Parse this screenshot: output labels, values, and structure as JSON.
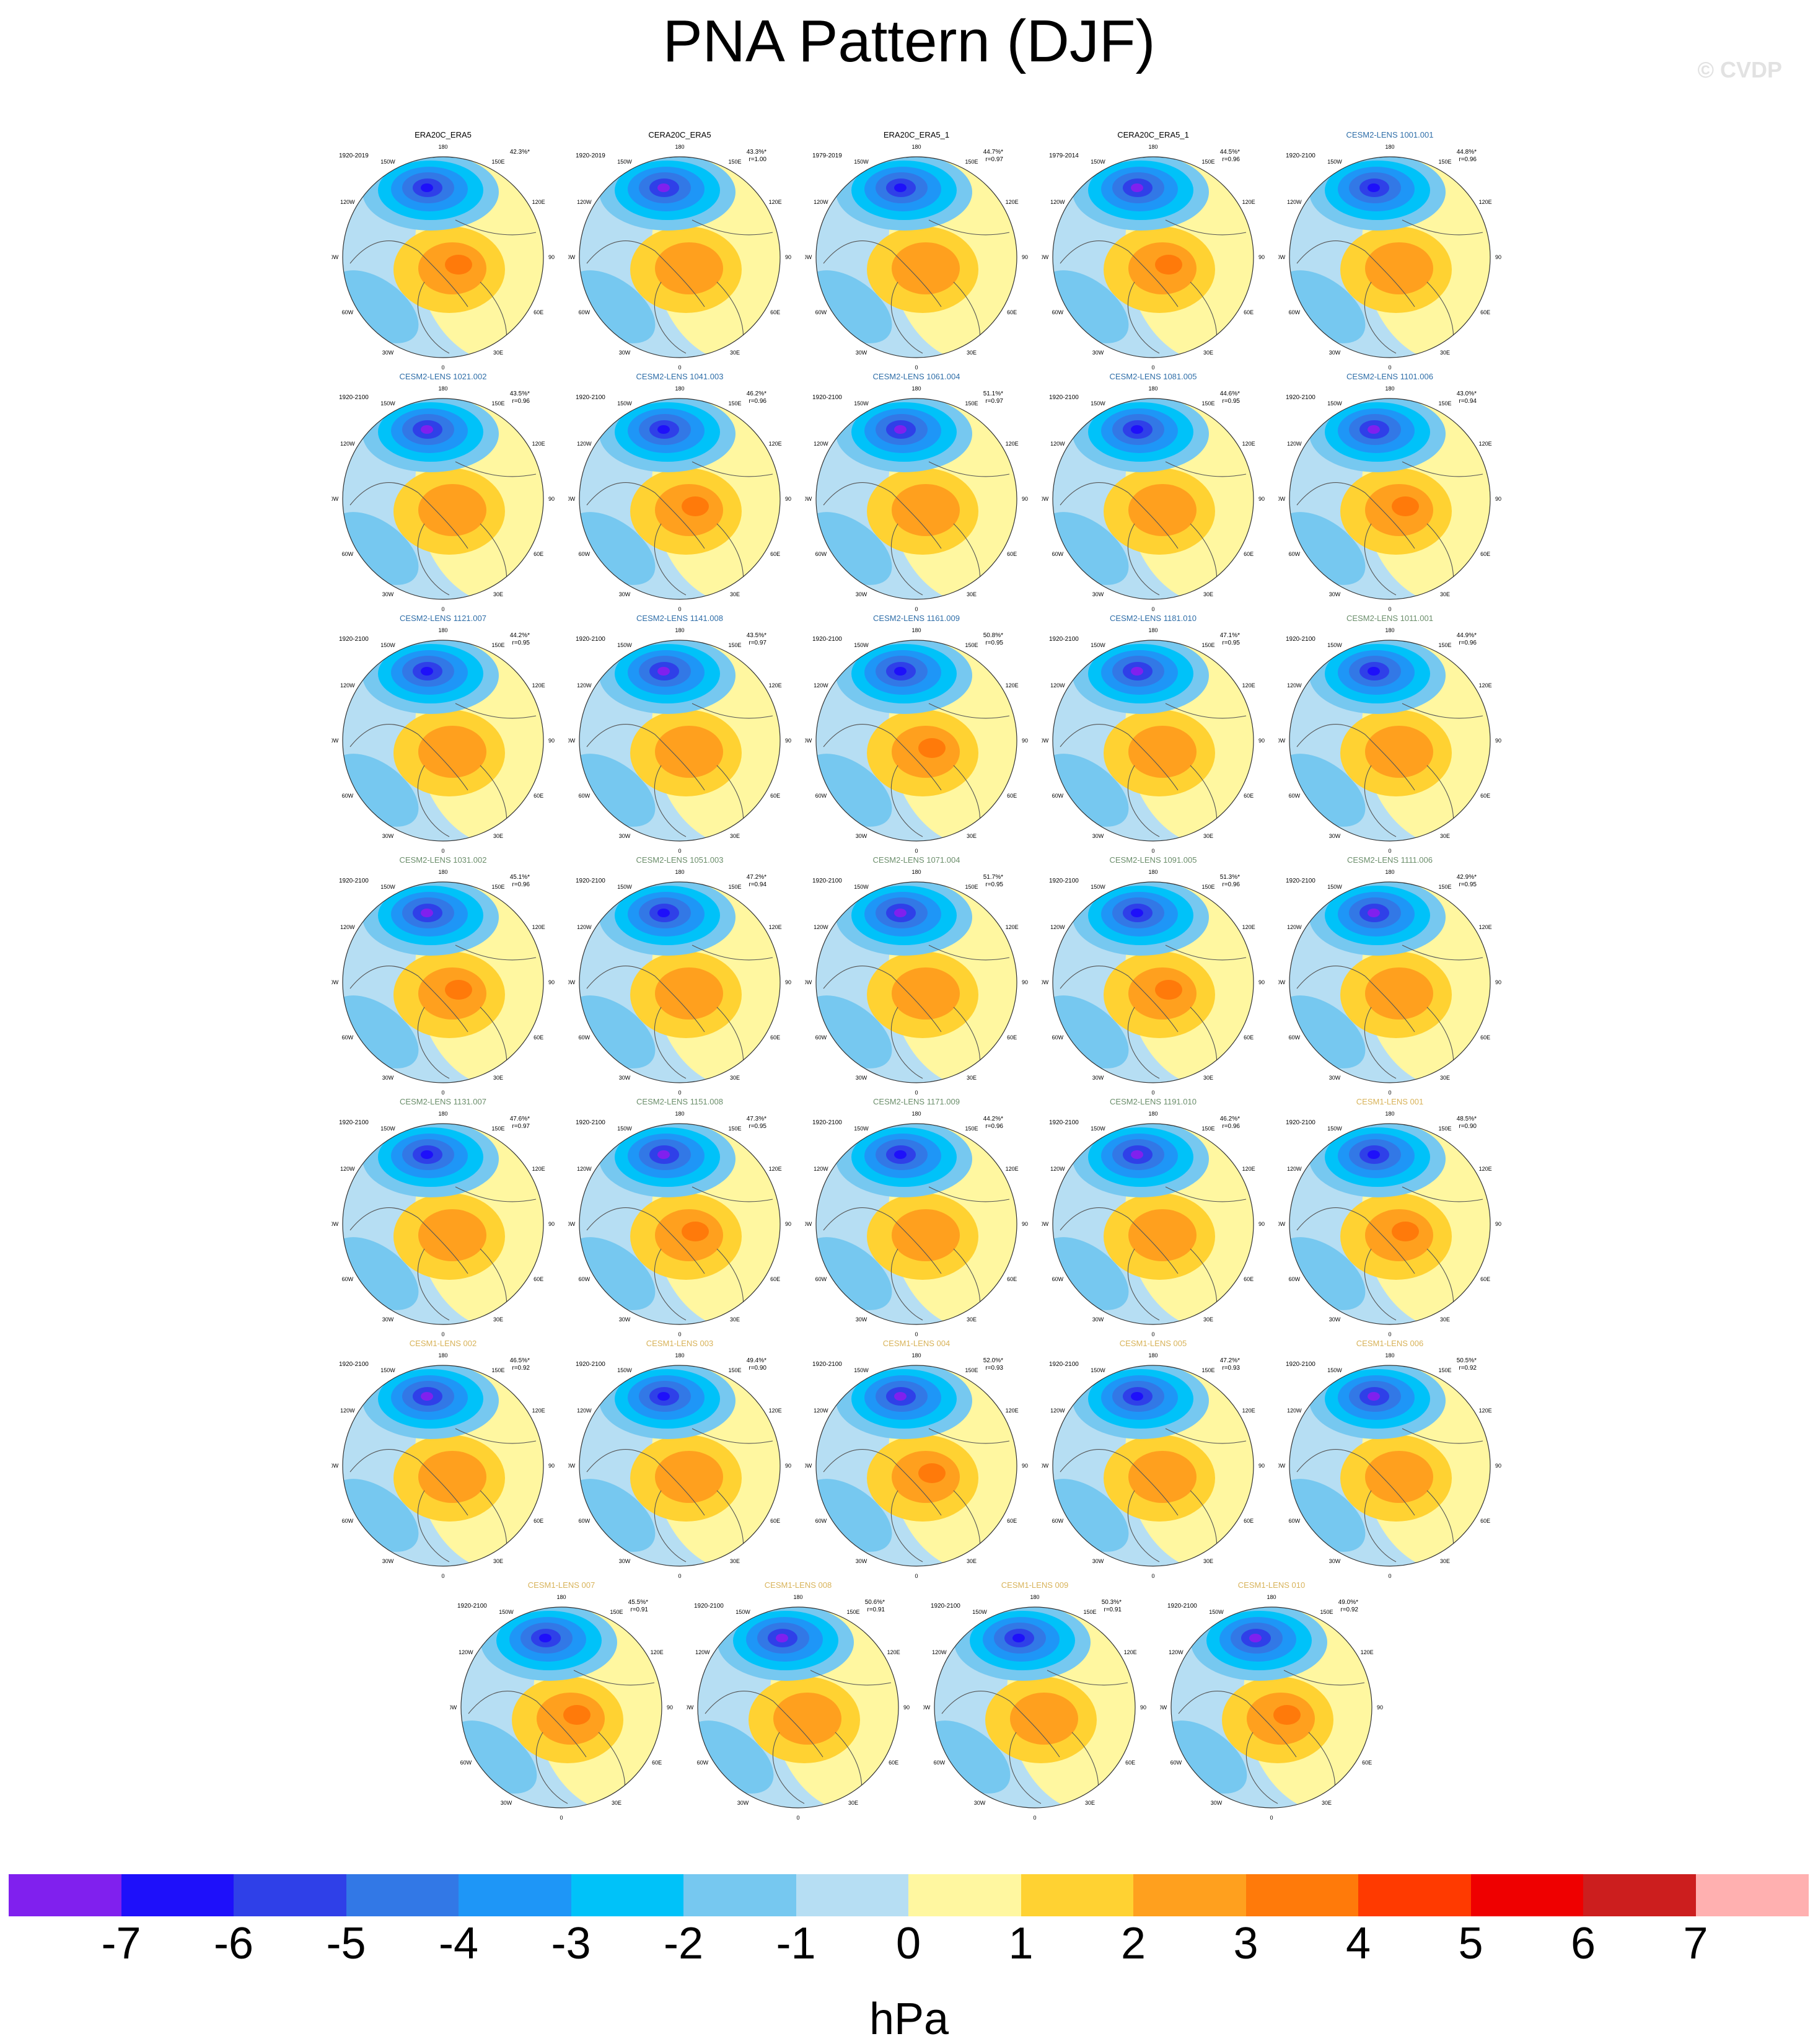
{
  "title": "PNA Pattern (DJF)",
  "credit": "© CVDP",
  "lat_labels": [
    "180",
    "150E",
    "120E",
    "90E",
    "60E",
    "30E",
    "0",
    "30W",
    "60W",
    "90W",
    "120W",
    "150W"
  ],
  "panels": [
    {
      "name": "ERA20C_ERA5",
      "period": "1920-2019",
      "pct": "42.3%*",
      "r": "",
      "group": "obs"
    },
    {
      "name": "CERA20C_ERA5",
      "period": "1920-2019",
      "pct": "43.3%*",
      "r": "r=1.00",
      "group": "obs"
    },
    {
      "name": "ERA20C_ERA5_1",
      "period": "1979-2019",
      "pct": "44.7%*",
      "r": "r=0.97",
      "group": "obs"
    },
    {
      "name": "CERA20C_ERA5_1",
      "period": "1979-2014",
      "pct": "44.5%*",
      "r": "r=0.96",
      "group": "obs"
    },
    {
      "name": "CESM2-LENS 1001.001",
      "period": "1920-2100",
      "pct": "44.8%*",
      "r": "r=0.96",
      "group": "cesm2a"
    },
    {
      "name": "CESM2-LENS 1021.002",
      "period": "1920-2100",
      "pct": "43.5%*",
      "r": "r=0.96",
      "group": "cesm2a"
    },
    {
      "name": "CESM2-LENS 1041.003",
      "period": "1920-2100",
      "pct": "46.2%*",
      "r": "r=0.96",
      "group": "cesm2a"
    },
    {
      "name": "CESM2-LENS 1061.004",
      "period": "1920-2100",
      "pct": "51.1%*",
      "r": "r=0.97",
      "group": "cesm2a"
    },
    {
      "name": "CESM2-LENS 1081.005",
      "period": "1920-2100",
      "pct": "44.6%*",
      "r": "r=0.95",
      "group": "cesm2a"
    },
    {
      "name": "CESM2-LENS 1101.006",
      "period": "1920-2100",
      "pct": "43.0%*",
      "r": "r=0.94",
      "group": "cesm2a"
    },
    {
      "name": "CESM2-LENS 1121.007",
      "period": "1920-2100",
      "pct": "44.2%*",
      "r": "r=0.95",
      "group": "cesm2a"
    },
    {
      "name": "CESM2-LENS 1141.008",
      "period": "1920-2100",
      "pct": "43.5%*",
      "r": "r=0.97",
      "group": "cesm2a"
    },
    {
      "name": "CESM2-LENS 1161.009",
      "period": "1920-2100",
      "pct": "50.8%*",
      "r": "r=0.95",
      "group": "cesm2a"
    },
    {
      "name": "CESM2-LENS 1181.010",
      "period": "1920-2100",
      "pct": "47.1%*",
      "r": "r=0.95",
      "group": "cesm2a"
    },
    {
      "name": "CESM2-LENS 1011.001",
      "period": "1920-2100",
      "pct": "44.9%*",
      "r": "r=0.96",
      "group": "cesm2b"
    },
    {
      "name": "CESM2-LENS 1031.002",
      "period": "1920-2100",
      "pct": "45.1%*",
      "r": "r=0.96",
      "group": "cesm2b"
    },
    {
      "name": "CESM2-LENS 1051.003",
      "period": "1920-2100",
      "pct": "47.2%*",
      "r": "r=0.94",
      "group": "cesm2b"
    },
    {
      "name": "CESM2-LENS 1071.004",
      "period": "1920-2100",
      "pct": "51.7%*",
      "r": "r=0.95",
      "group": "cesm2b"
    },
    {
      "name": "CESM2-LENS 1091.005",
      "period": "1920-2100",
      "pct": "51.3%*",
      "r": "r=0.96",
      "group": "cesm2b"
    },
    {
      "name": "CESM2-LENS 1111.006",
      "period": "1920-2100",
      "pct": "42.9%*",
      "r": "r=0.95",
      "group": "cesm2b"
    },
    {
      "name": "CESM2-LENS 1131.007",
      "period": "1920-2100",
      "pct": "47.6%*",
      "r": "r=0.97",
      "group": "cesm2b"
    },
    {
      "name": "CESM2-LENS 1151.008",
      "period": "1920-2100",
      "pct": "47.3%*",
      "r": "r=0.95",
      "group": "cesm2b"
    },
    {
      "name": "CESM2-LENS 1171.009",
      "period": "1920-2100",
      "pct": "44.2%*",
      "r": "r=0.96",
      "group": "cesm2b"
    },
    {
      "name": "CESM2-LENS 1191.010",
      "period": "1920-2100",
      "pct": "46.2%*",
      "r": "r=0.96",
      "group": "cesm2b"
    },
    {
      "name": "CESM1-LENS 001",
      "period": "1920-2100",
      "pct": "48.5%*",
      "r": "r=0.90",
      "group": "cesm1"
    },
    {
      "name": "CESM1-LENS 002",
      "period": "1920-2100",
      "pct": "46.5%*",
      "r": "r=0.92",
      "group": "cesm1"
    },
    {
      "name": "CESM1-LENS 003",
      "period": "1920-2100",
      "pct": "49.4%*",
      "r": "r=0.90",
      "group": "cesm1"
    },
    {
      "name": "CESM1-LENS 004",
      "period": "1920-2100",
      "pct": "52.0%*",
      "r": "r=0.93",
      "group": "cesm1"
    },
    {
      "name": "CESM1-LENS 005",
      "period": "1920-2100",
      "pct": "47.2%*",
      "r": "r=0.93",
      "group": "cesm1"
    },
    {
      "name": "CESM1-LENS 006",
      "period": "1920-2100",
      "pct": "50.5%*",
      "r": "r=0.92",
      "group": "cesm1"
    },
    {
      "name": "CESM1-LENS 007",
      "period": "1920-2100",
      "pct": "45.5%*",
      "r": "r=0.91",
      "group": "cesm1"
    },
    {
      "name": "CESM1-LENS 008",
      "period": "1920-2100",
      "pct": "50.6%*",
      "r": "r=0.91",
      "group": "cesm1"
    },
    {
      "name": "CESM1-LENS 009",
      "period": "1920-2100",
      "pct": "50.3%*",
      "r": "r=0.91",
      "group": "cesm1"
    },
    {
      "name": "CESM1-LENS 010",
      "period": "1920-2100",
      "pct": "49.0%*",
      "r": "r=0.92",
      "group": "cesm1"
    }
  ],
  "group_colors": {
    "obs": "#000000",
    "cesm2a": "#2f6ea8",
    "cesm2b": "#6b8e6b",
    "cesm1": "#d8b35a"
  },
  "colorbar": {
    "colors": [
      "#8020ee",
      "#1e10fa",
      "#2f40e8",
      "#3278e6",
      "#1e96f7",
      "#00c2f9",
      "#76c8f0",
      "#b6def3",
      "#fff7a0",
      "#ffd232",
      "#ffa01e",
      "#ff7a0a",
      "#ff3a00",
      "#ef0000",
      "#cc1e1e",
      "#ffb0b0"
    ],
    "labels": [
      "-7",
      "-6",
      "-5",
      "-4",
      "-3",
      "-2",
      "-1",
      "0",
      "1",
      "2",
      "3",
      "4",
      "5",
      "6",
      "7"
    ],
    "units": "hPa"
  }
}
